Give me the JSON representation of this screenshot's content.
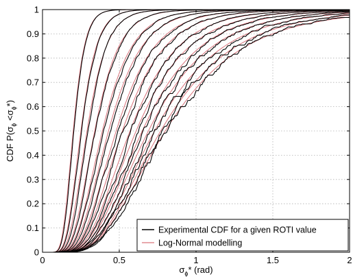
{
  "chart_data": {
    "type": "line",
    "xlabel_base": "σ",
    "xlabel_sub": "ϕ",
    "xlabel_rest": "* (rad)",
    "ylabel_prefix": "CDF P(σ",
    "ylabel_sub": "ϕ",
    "ylabel_mid": " <σ",
    "ylabel_sub2": "ϕ",
    "ylabel_suffix": "*)",
    "xlim": [
      0,
      2
    ],
    "ylim": [
      0,
      1
    ],
    "xticks": [
      0,
      0.5,
      1,
      1.5,
      2
    ],
    "xtick_labels": [
      "0",
      "0.5",
      "1",
      "1.5",
      "2"
    ],
    "yticks": [
      0,
      0.1,
      0.2,
      0.3,
      0.4,
      0.5,
      0.6,
      0.7,
      0.8,
      0.9,
      1
    ],
    "ytick_labels": [
      "0",
      "0.1",
      "0.2",
      "0.3",
      "0.4",
      "0.5",
      "0.6",
      "0.7",
      "0.8",
      "0.9",
      "1"
    ],
    "grid": true,
    "legend_position": "bottom-right",
    "series": [
      {
        "name": "Experimental CDF for a given ROTI value",
        "color": "#000000"
      },
      {
        "name": "Log-Normal modelling",
        "color": "#d9737b"
      }
    ],
    "curve_medians": [
      0.2,
      0.25,
      0.29,
      0.34,
      0.39,
      0.43,
      0.48,
      0.52,
      0.57,
      0.61,
      0.65,
      0.69,
      0.73,
      0.77,
      0.8
    ],
    "curve_sigmas": [
      0.3,
      0.33,
      0.35,
      0.37,
      0.39,
      0.4,
      0.41,
      0.42,
      0.43,
      0.44,
      0.45,
      0.46,
      0.47,
      0.48,
      0.49
    ]
  }
}
